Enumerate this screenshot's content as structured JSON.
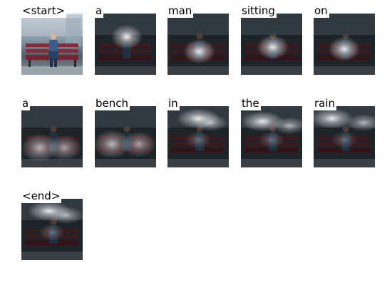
{
  "panels": [
    {
      "word": "<start>",
      "attention": "none",
      "focus": [
        0.5,
        0.5
      ]
    },
    {
      "word": "a",
      "attention": "focused",
      "focus": [
        0.52,
        0.38
      ]
    },
    {
      "word": "man",
      "attention": "focused",
      "focus": [
        0.52,
        0.62
      ]
    },
    {
      "word": "sitting",
      "attention": "focused",
      "focus": [
        0.52,
        0.55
      ]
    },
    {
      "word": "on",
      "attention": "focused",
      "focus": [
        0.5,
        0.58
      ]
    },
    {
      "word": "a",
      "attention": "diffuse",
      "focus": [
        0.3,
        0.68
      ]
    },
    {
      "word": "bench",
      "attention": "diffuse",
      "focus": [
        0.28,
        0.62
      ]
    },
    {
      "word": "in",
      "attention": "top",
      "focus": [
        0.5,
        0.2
      ]
    },
    {
      "word": "the",
      "attention": "top",
      "focus": [
        0.35,
        0.25
      ]
    },
    {
      "word": "rain",
      "attention": "top",
      "focus": [
        0.3,
        0.2
      ]
    },
    {
      "word": "<end>",
      "attention": "top",
      "focus": [
        0.45,
        0.2
      ]
    }
  ]
}
